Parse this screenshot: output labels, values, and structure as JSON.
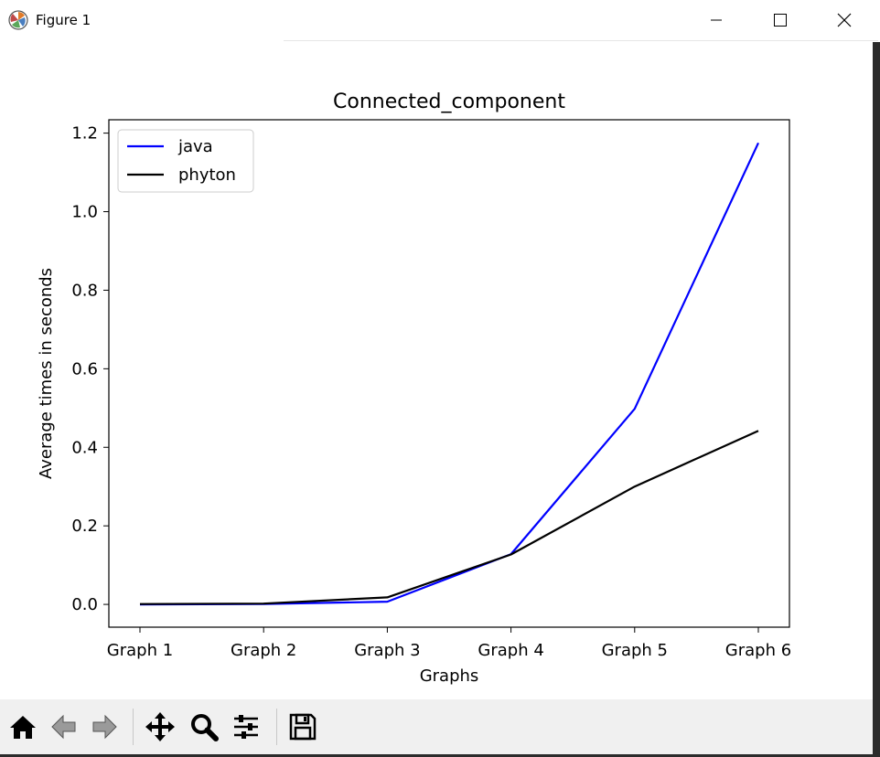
{
  "window": {
    "title": "Figure 1",
    "icon": "matplotlib-icon",
    "controls": [
      "minimize-icon",
      "maximize-icon",
      "close-icon"
    ]
  },
  "toolbar": {
    "buttons": [
      "home-icon",
      "back-arrow-icon",
      "forward-arrow-icon",
      "pan-icon",
      "zoom-icon",
      "configure-subplots-icon",
      "save-icon"
    ]
  },
  "chart_data": {
    "type": "line",
    "title": "Connected_component",
    "xlabel": "Graphs",
    "ylabel": "Average times in seconds",
    "categories": [
      "Graph 1",
      "Graph 2",
      "Graph 3",
      "Graph 4",
      "Graph 5",
      "Graph 6"
    ],
    "series": [
      {
        "name": "java",
        "color": "#0000ff",
        "values": [
          0.0,
          0.001,
          0.007,
          0.128,
          0.498,
          1.175
        ]
      },
      {
        "name": "phyton",
        "color": "#000000",
        "values": [
          0.001,
          0.002,
          0.018,
          0.127,
          0.3,
          0.442
        ]
      }
    ],
    "ylim": [
      -0.058,
      1.234
    ],
    "yticks": [
      0.0,
      0.2,
      0.4,
      0.6,
      0.8,
      1.0,
      1.2
    ],
    "ytick_labels": [
      "0.0",
      "0.2",
      "0.4",
      "0.6",
      "0.8",
      "1.0",
      "1.2"
    ],
    "grid": false,
    "legend": "upper-left"
  }
}
